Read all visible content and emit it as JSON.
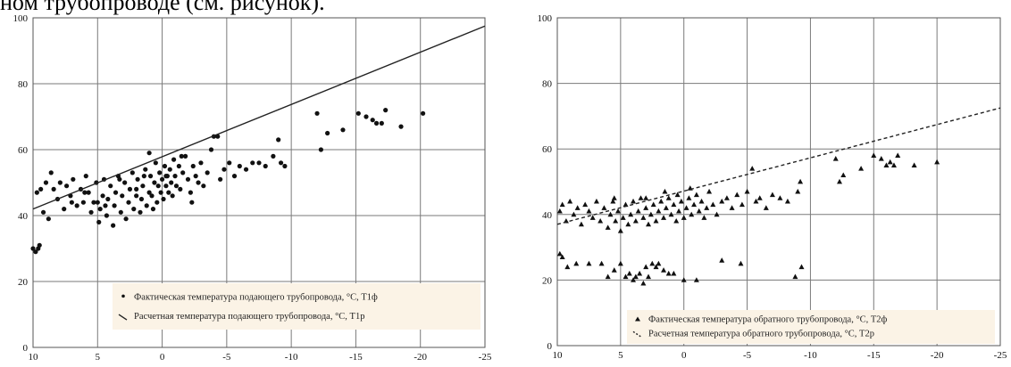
{
  "header_text": "ном трубопроводе (см. рисунок).",
  "colors": {
    "plot_bg": "#ffffff",
    "grid": "#7a7a7a",
    "legend_bg": "#fbf3e6",
    "marker": "#111111",
    "line": "#222222"
  },
  "chart_data": [
    {
      "type": "scatter",
      "title": "",
      "xlabel": "",
      "ylabel": "",
      "xlim": [
        10,
        -25
      ],
      "ylim": [
        0,
        100
      ],
      "x_ticks": [
        "10",
        "5",
        "0",
        "-5",
        "-10",
        "-15",
        "-20",
        "-25"
      ],
      "y_ticks": [
        "0",
        "20",
        "40",
        "60",
        "80",
        "100"
      ],
      "grid": true,
      "legend_position": "bottom-right",
      "series": [
        {
          "name": "Фактическая температура подающего трубопровода, °С, Т1ф",
          "kind": "points",
          "marker": "circle",
          "points": [
            [
              9.8,
              29
            ],
            [
              9.6,
              30
            ],
            [
              9.5,
              31
            ],
            [
              9.7,
              47
            ],
            [
              9.4,
              48
            ],
            [
              9.2,
              41
            ],
            [
              9.0,
              50
            ],
            [
              8.8,
              39
            ],
            [
              8.6,
              53
            ],
            [
              8.4,
              48
            ],
            [
              8.1,
              45
            ],
            [
              7.9,
              50
            ],
            [
              7.6,
              42
            ],
            [
              7.4,
              49
            ],
            [
              7.1,
              46
            ],
            [
              6.9,
              51
            ],
            [
              6.6,
              43
            ],
            [
              6.3,
              48
            ],
            [
              6.1,
              44
            ],
            [
              5.9,
              52
            ],
            [
              5.7,
              47
            ],
            [
              5.5,
              41
            ],
            [
              5.3,
              44
            ],
            [
              5.1,
              50
            ],
            [
              4.9,
              38
            ],
            [
              4.8,
              42
            ],
            [
              4.6,
              46
            ],
            [
              4.5,
              51
            ],
            [
              4.3,
              40
            ],
            [
              4.2,
              45
            ],
            [
              4.0,
              49
            ],
            [
              3.8,
              37
            ],
            [
              3.7,
              43
            ],
            [
              3.6,
              47
            ],
            [
              3.4,
              52
            ],
            [
              3.2,
              41
            ],
            [
              3.1,
              46
            ],
            [
              2.9,
              50
            ],
            [
              2.8,
              39
            ],
            [
              2.6,
              44
            ],
            [
              2.5,
              48
            ],
            [
              2.3,
              53
            ],
            [
              2.2,
              42
            ],
            [
              2.0,
              46
            ],
            [
              1.9,
              51
            ],
            [
              1.7,
              41
            ],
            [
              1.6,
              45
            ],
            [
              1.5,
              49
            ],
            [
              1.3,
              54
            ],
            [
              1.2,
              43
            ],
            [
              1.0,
              47
            ],
            [
              0.9,
              52
            ],
            [
              0.8,
              46
            ],
            [
              0.6,
              50
            ],
            [
              0.5,
              56
            ],
            [
              0.4,
              44
            ],
            [
              0.3,
              49
            ],
            [
              0.2,
              53
            ],
            [
              0.1,
              47
            ],
            [
              0.0,
              51
            ],
            [
              -0.1,
              45
            ],
            [
              -0.2,
              55
            ],
            [
              -0.3,
              49
            ],
            [
              -0.4,
              52
            ],
            [
              -0.5,
              47
            ],
            [
              -0.6,
              54
            ],
            [
              -0.7,
              50
            ],
            [
              -0.8,
              46
            ],
            [
              -0.9,
              57
            ],
            [
              -1.0,
              52
            ],
            [
              -1.1,
              49
            ],
            [
              -1.3,
              55
            ],
            [
              -1.4,
              48
            ],
            [
              -1.6,
              53
            ],
            [
              -1.8,
              58
            ],
            [
              -2.0,
              51
            ],
            [
              -2.2,
              47
            ],
            [
              -2.4,
              55
            ],
            [
              -2.6,
              52
            ],
            [
              -2.8,
              50
            ],
            [
              -3.0,
              56
            ],
            [
              -3.2,
              49
            ],
            [
              -3.5,
              53
            ],
            [
              -3.8,
              60
            ],
            [
              -4.0,
              64
            ],
            [
              -4.3,
              64
            ],
            [
              -4.5,
              51
            ],
            [
              -4.8,
              54
            ],
            [
              -5.2,
              56
            ],
            [
              -5.6,
              52
            ],
            [
              -6.0,
              55
            ],
            [
              -6.5,
              54
            ],
            [
              -7.0,
              56
            ],
            [
              -7.5,
              56
            ],
            [
              -8.0,
              55
            ],
            [
              -8.6,
              58
            ],
            [
              -9.0,
              63
            ],
            [
              -9.2,
              56
            ],
            [
              -9.5,
              55
            ],
            [
              2.0,
              48
            ],
            [
              1.4,
              52
            ],
            [
              1.0,
              59
            ],
            [
              -0.3,
              52
            ],
            [
              -1.5,
              58
            ],
            [
              -2.3,
              44
            ],
            [
              3.3,
              51
            ],
            [
              5.0,
              44
            ],
            [
              6.0,
              47
            ],
            [
              7.0,
              44
            ],
            [
              4.4,
              43
            ],
            [
              0.7,
              42
            ],
            [
              -12.0,
              71
            ],
            [
              -12.3,
              60
            ],
            [
              -12.8,
              65
            ],
            [
              -14.0,
              66
            ],
            [
              -15.2,
              71
            ],
            [
              -15.8,
              70
            ],
            [
              -16.3,
              69
            ],
            [
              -16.6,
              68
            ],
            [
              -17.0,
              68
            ],
            [
              -17.3,
              72
            ],
            [
              -18.5,
              67
            ],
            [
              -20.2,
              71
            ],
            [
              10.0,
              30
            ]
          ]
        },
        {
          "name": "Расчетная температура подающего трубопровода, °С, Т1р",
          "kind": "line",
          "style": "solid",
          "points": [
            [
              10,
              42
            ],
            [
              -25,
              97.5
            ]
          ]
        }
      ]
    },
    {
      "type": "scatter",
      "title": "",
      "xlabel": "",
      "ylabel": "",
      "xlim": [
        10,
        -25
      ],
      "ylim": [
        0,
        100
      ],
      "x_ticks": [
        "10",
        "5",
        "0",
        "-5",
        "-10",
        "-15",
        "-20",
        "-25"
      ],
      "y_ticks": [
        "0",
        "20",
        "40",
        "60",
        "80",
        "100"
      ],
      "grid": true,
      "legend_position": "bottom-right",
      "series": [
        {
          "name": "Фактическая температура обратного трубопровода, °С, Т2ф",
          "kind": "points",
          "marker": "triangle",
          "points": [
            [
              9.8,
              41
            ],
            [
              9.6,
              43
            ],
            [
              9.3,
              38
            ],
            [
              9.0,
              44
            ],
            [
              8.7,
              40
            ],
            [
              8.4,
              42
            ],
            [
              8.1,
              37
            ],
            [
              7.8,
              43
            ],
            [
              7.5,
              41
            ],
            [
              7.2,
              39
            ],
            [
              6.9,
              44
            ],
            [
              6.6,
              38
            ],
            [
              6.3,
              42
            ],
            [
              6.0,
              36
            ],
            [
              5.8,
              40
            ],
            [
              5.6,
              44
            ],
            [
              5.4,
              38
            ],
            [
              5.2,
              41
            ],
            [
              5.0,
              35
            ],
            [
              4.8,
              39
            ],
            [
              4.6,
              43
            ],
            [
              4.4,
              37
            ],
            [
              4.2,
              40
            ],
            [
              4.0,
              44
            ],
            [
              3.8,
              38
            ],
            [
              3.6,
              41
            ],
            [
              3.4,
              45
            ],
            [
              3.2,
              39
            ],
            [
              3.0,
              42
            ],
            [
              2.8,
              37
            ],
            [
              2.6,
              40
            ],
            [
              2.4,
              43
            ],
            [
              2.2,
              38
            ],
            [
              2.0,
              41
            ],
            [
              1.8,
              44
            ],
            [
              1.6,
              39
            ],
            [
              1.4,
              42
            ],
            [
              1.2,
              45
            ],
            [
              1.0,
              40
            ],
            [
              0.8,
              43
            ],
            [
              0.6,
              38
            ],
            [
              0.4,
              41
            ],
            [
              0.2,
              44
            ],
            [
              0.0,
              39
            ],
            [
              -0.2,
              42
            ],
            [
              -0.4,
              45
            ],
            [
              -0.6,
              40
            ],
            [
              -0.8,
              43
            ],
            [
              -1.0,
              46
            ],
            [
              -1.2,
              41
            ],
            [
              -1.4,
              44
            ],
            [
              -1.6,
              39
            ],
            [
              -1.8,
              42
            ],
            [
              -2.0,
              47
            ],
            [
              -2.3,
              43
            ],
            [
              -2.6,
              40
            ],
            [
              -3.0,
              44
            ],
            [
              -3.4,
              45
            ],
            [
              -3.8,
              42
            ],
            [
              -4.2,
              46
            ],
            [
              -4.6,
              43
            ],
            [
              -5.0,
              47
            ],
            [
              -5.4,
              54
            ],
            [
              -5.7,
              44
            ],
            [
              -6.0,
              45
            ],
            [
              -6.5,
              42
            ],
            [
              -7.0,
              46
            ],
            [
              -7.6,
              45
            ],
            [
              -8.2,
              44
            ],
            [
              -9.0,
              47
            ],
            [
              -9.2,
              50
            ],
            [
              1.5,
              47
            ],
            [
              0.5,
              46
            ],
            [
              -0.5,
              48
            ],
            [
              3.0,
              45
            ],
            [
              5.5,
              45
            ],
            [
              9.8,
              28
            ],
            [
              9.6,
              27
            ],
            [
              9.2,
              24
            ],
            [
              8.5,
              25
            ],
            [
              7.5,
              25
            ],
            [
              6.5,
              25
            ],
            [
              6.0,
              21
            ],
            [
              5.5,
              23
            ],
            [
              5.0,
              25
            ],
            [
              4.6,
              21
            ],
            [
              4.3,
              22
            ],
            [
              4.0,
              20
            ],
            [
              3.8,
              21
            ],
            [
              3.5,
              22
            ],
            [
              3.2,
              19
            ],
            [
              3.0,
              24
            ],
            [
              2.8,
              21
            ],
            [
              2.5,
              25
            ],
            [
              2.2,
              24
            ],
            [
              2.0,
              25
            ],
            [
              1.6,
              23
            ],
            [
              1.2,
              22
            ],
            [
              0.8,
              22
            ],
            [
              0.0,
              20
            ],
            [
              -1.0,
              20
            ],
            [
              -3.0,
              26
            ],
            [
              -4.5,
              25
            ],
            [
              -8.8,
              21
            ],
            [
              -9.3,
              24
            ],
            [
              -12.0,
              57
            ],
            [
              -12.3,
              50
            ],
            [
              -12.6,
              52
            ],
            [
              -14.0,
              54
            ],
            [
              -15.0,
              58
            ],
            [
              -15.6,
              57
            ],
            [
              -16.0,
              55
            ],
            [
              -16.3,
              56
            ],
            [
              -16.6,
              55
            ],
            [
              -16.9,
              58
            ],
            [
              -18.2,
              55
            ],
            [
              -20.0,
              56
            ]
          ]
        },
        {
          "name": "Расчетная температура обратного трубопровода, °С, Т2р",
          "kind": "line",
          "style": "dashed",
          "points": [
            [
              10,
              37
            ],
            [
              -25,
              72.5
            ]
          ]
        }
      ]
    }
  ]
}
